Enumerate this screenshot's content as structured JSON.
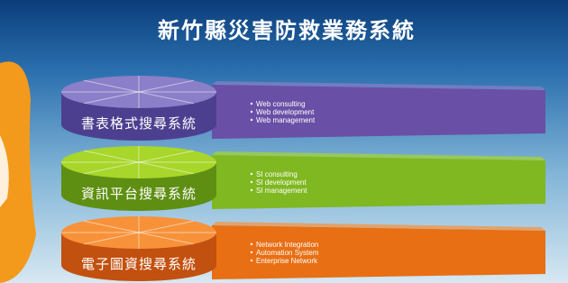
{
  "header": {
    "title": "新竹縣災害防救業務系統"
  },
  "layers": [
    {
      "label": "書表格式搜尋系統",
      "items": [
        "Web consulting",
        "Web development",
        "Web management"
      ]
    },
    {
      "label": "資訊平台搜尋系統",
      "items": [
        "SI consulting",
        "SI development",
        "SI management"
      ]
    },
    {
      "label": "電子圖資搜尋系統",
      "items": [
        "Network Integration",
        "Automation System",
        "Enterprise Network"
      ]
    }
  ]
}
